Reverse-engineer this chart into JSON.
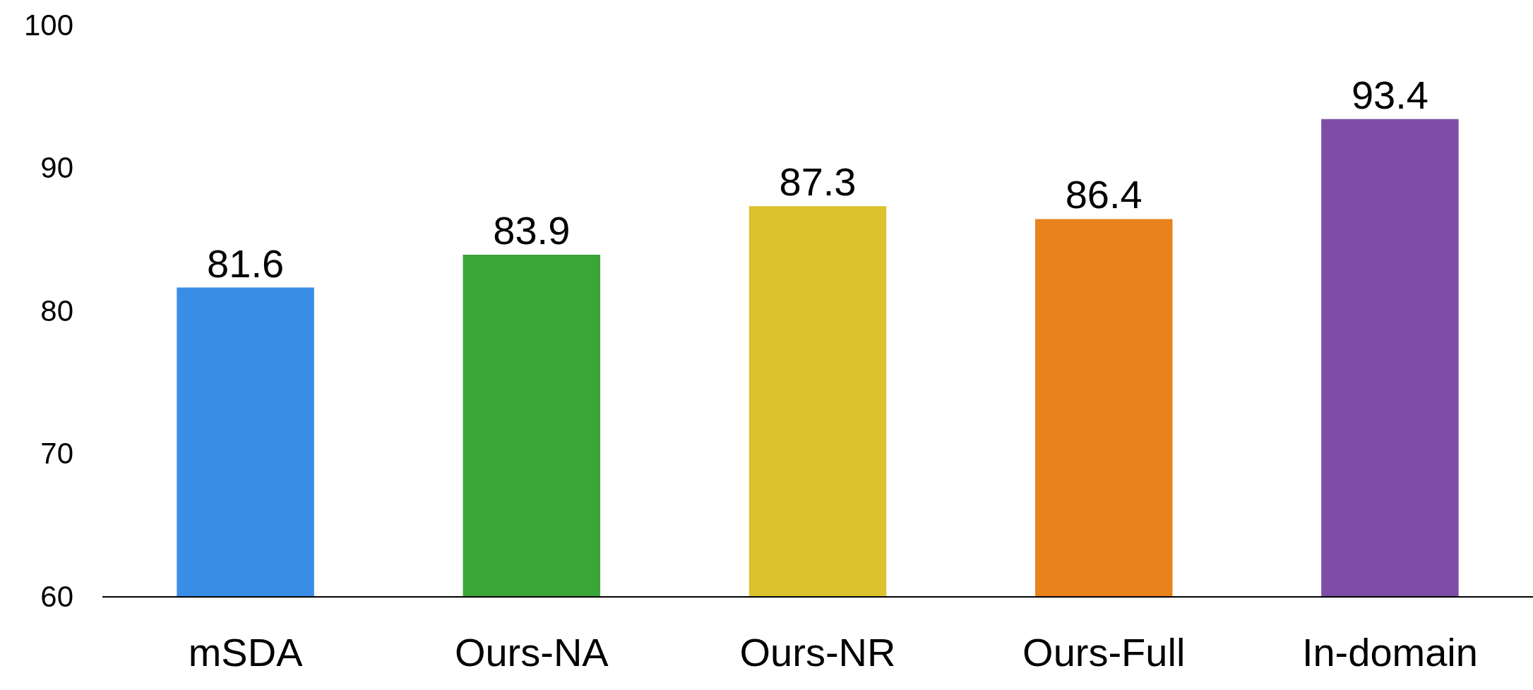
{
  "chart_data": {
    "type": "bar",
    "categories": [
      "mSDA",
      "Ours-NA",
      "Ours-NR",
      "Ours-Full",
      "In-domain"
    ],
    "values": [
      81.6,
      83.9,
      87.3,
      86.4,
      93.4
    ],
    "colors": [
      "#3a8ee6",
      "#3aa63a",
      "#dcc22c",
      "#e8831c",
      "#7e4ea6"
    ],
    "ylim": [
      60,
      100
    ],
    "yticks": [
      60,
      70,
      80,
      90,
      100
    ],
    "grid": false,
    "data_labels": true
  }
}
